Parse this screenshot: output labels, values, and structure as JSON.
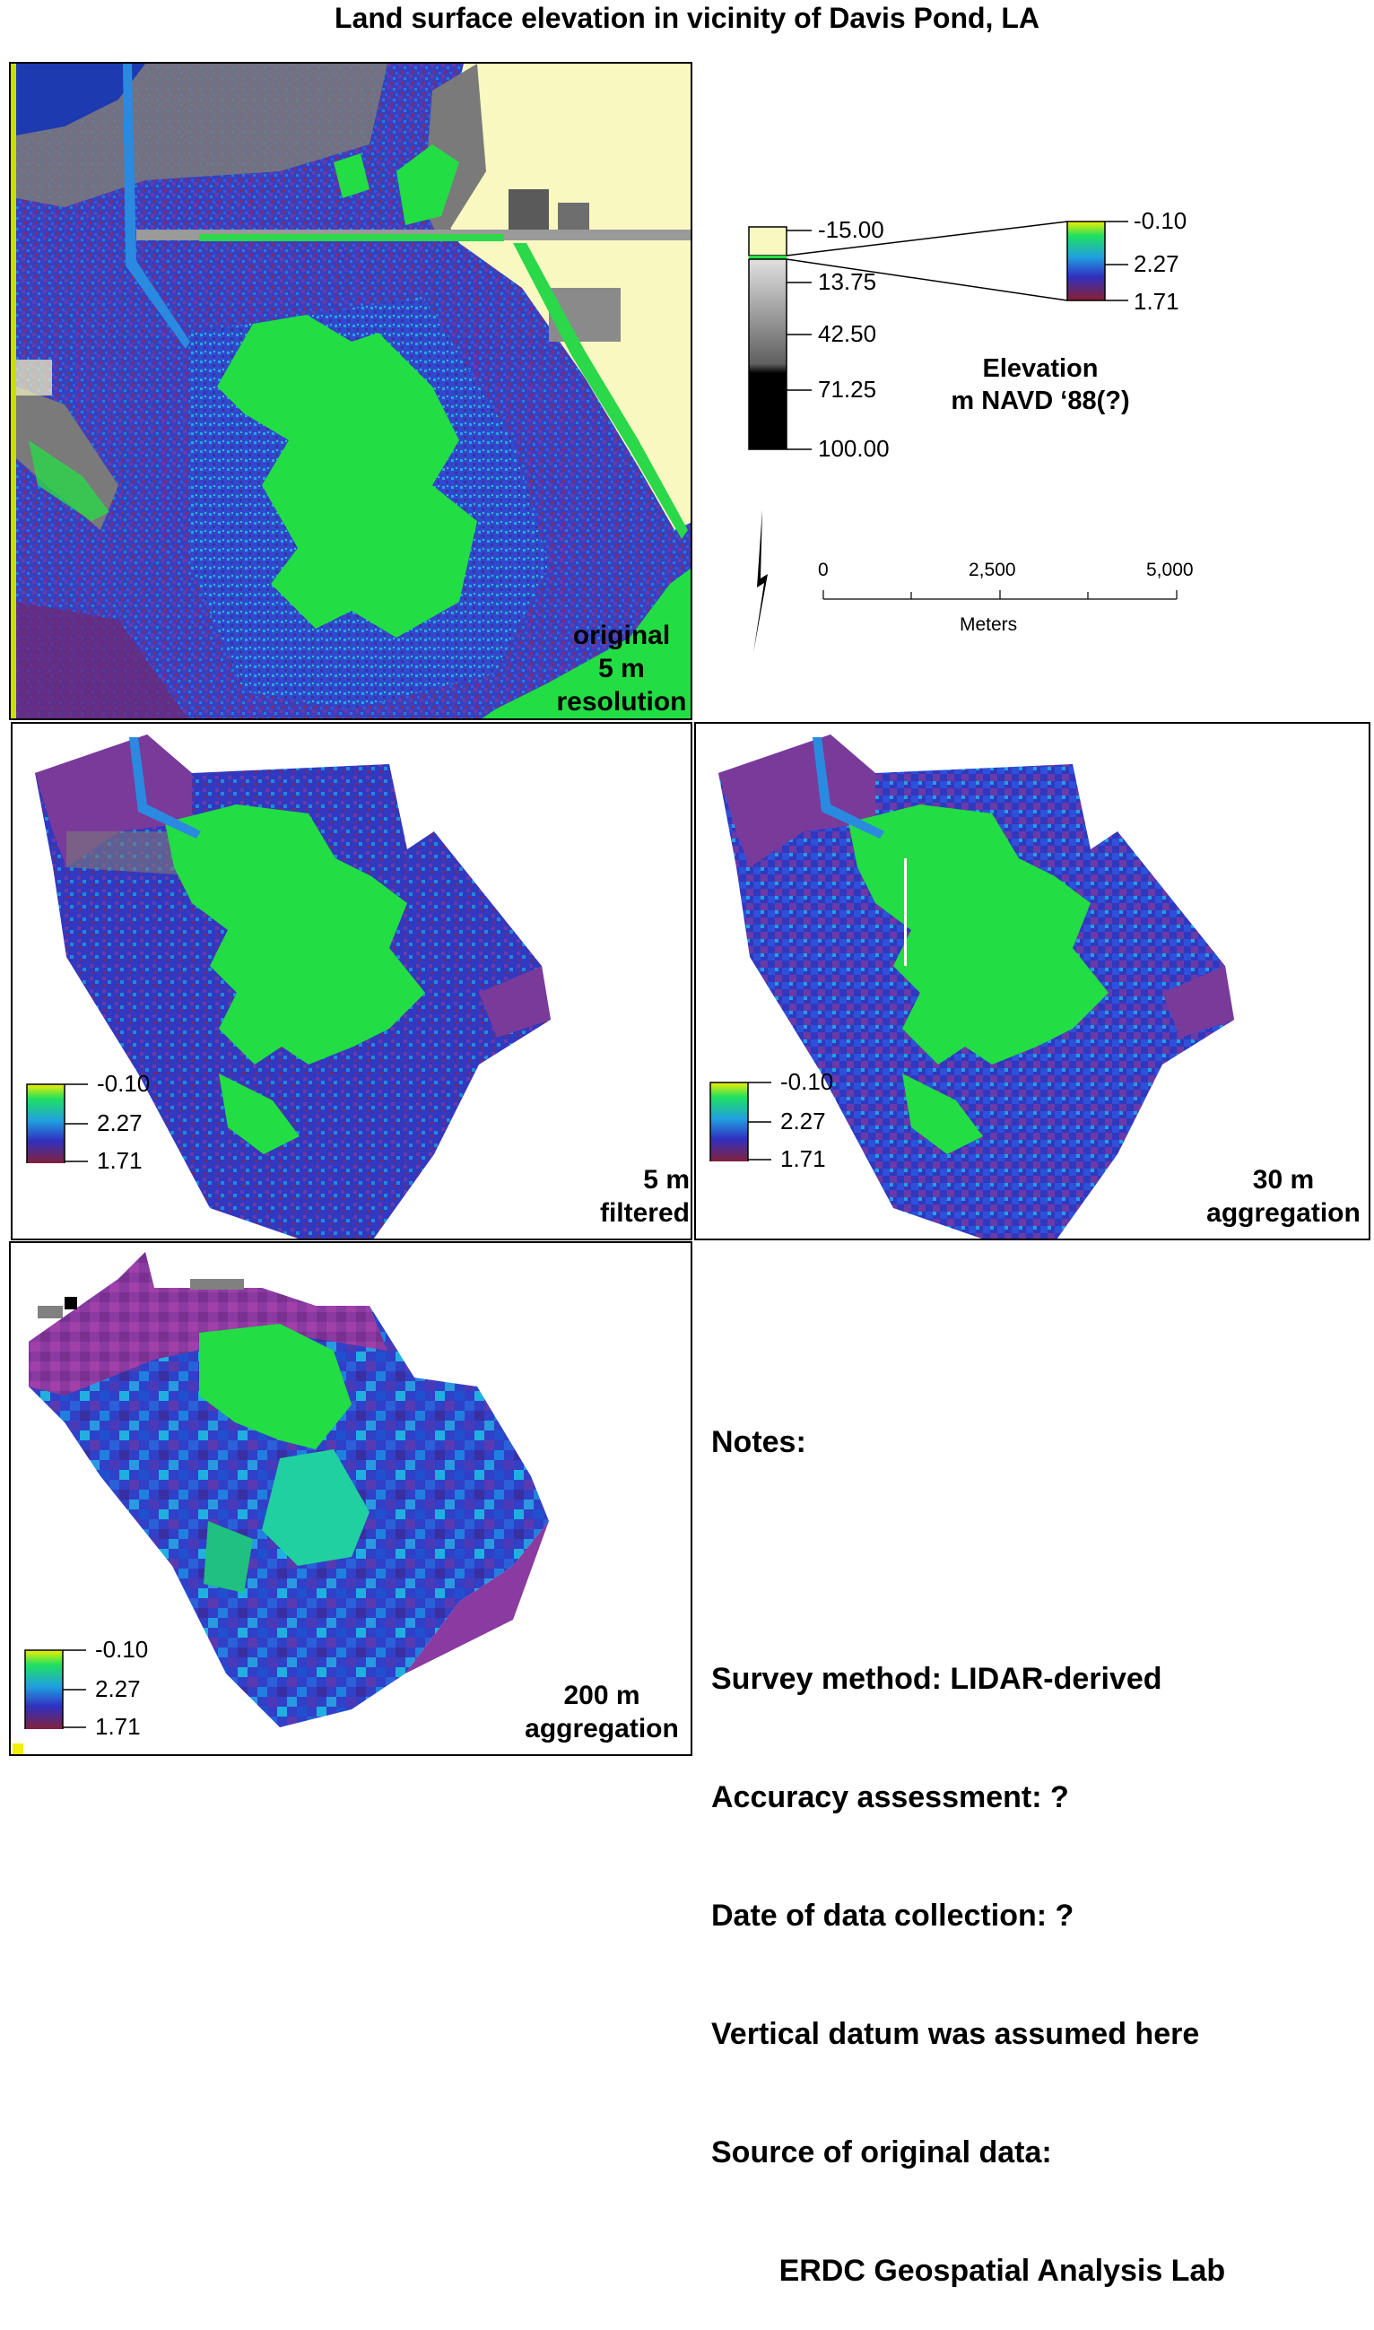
{
  "title": "Land surface elevation in vicinity of Davis Pond, LA",
  "panels": [
    {
      "id": "original",
      "label_lines": [
        "original",
        "5 m",
        "resolution"
      ]
    },
    {
      "id": "filtered",
      "label_lines": [
        "5 m",
        "filtered"
      ]
    },
    {
      "id": "agg30",
      "label_lines": [
        "30 m",
        "aggregation"
      ]
    },
    {
      "id": "agg200",
      "label_lines": [
        "200 m",
        "aggregation"
      ]
    }
  ],
  "legend": {
    "title_lines": [
      "Elevation",
      "m NAVD ‘88(?)"
    ],
    "main_ticks": [
      "-15.00",
      "13.75",
      "42.50",
      "71.25",
      "100.00"
    ],
    "inset_ticks": [
      "-0.10",
      "2.27",
      "1.71"
    ]
  },
  "mini_legend_ticks": [
    "-0.10",
    "2.27",
    "1.71"
  ],
  "scale": {
    "ticks": [
      "0",
      "2,500",
      "5,000"
    ],
    "unit": "Meters"
  },
  "notes": {
    "heading": "Notes:",
    "lines": [
      "Survey method: LIDAR-derived",
      "Accuracy assessment: ?",
      "Date of data collection: ?",
      "Vertical datum was assumed here",
      "Source of original data:",
      "        ERDC Geospatial Analysis Lab"
    ]
  },
  "colors": {
    "water_high": "#f8f8c0",
    "land_green": "#22dd44",
    "marsh_blue": "#2e3fc8",
    "marsh_purple": "#7a3a9a",
    "marsh_red": "#8a2030",
    "gray_levee": "#808080",
    "river_blue": "#1e40c0",
    "yellow_edge": "#c8e000"
  }
}
